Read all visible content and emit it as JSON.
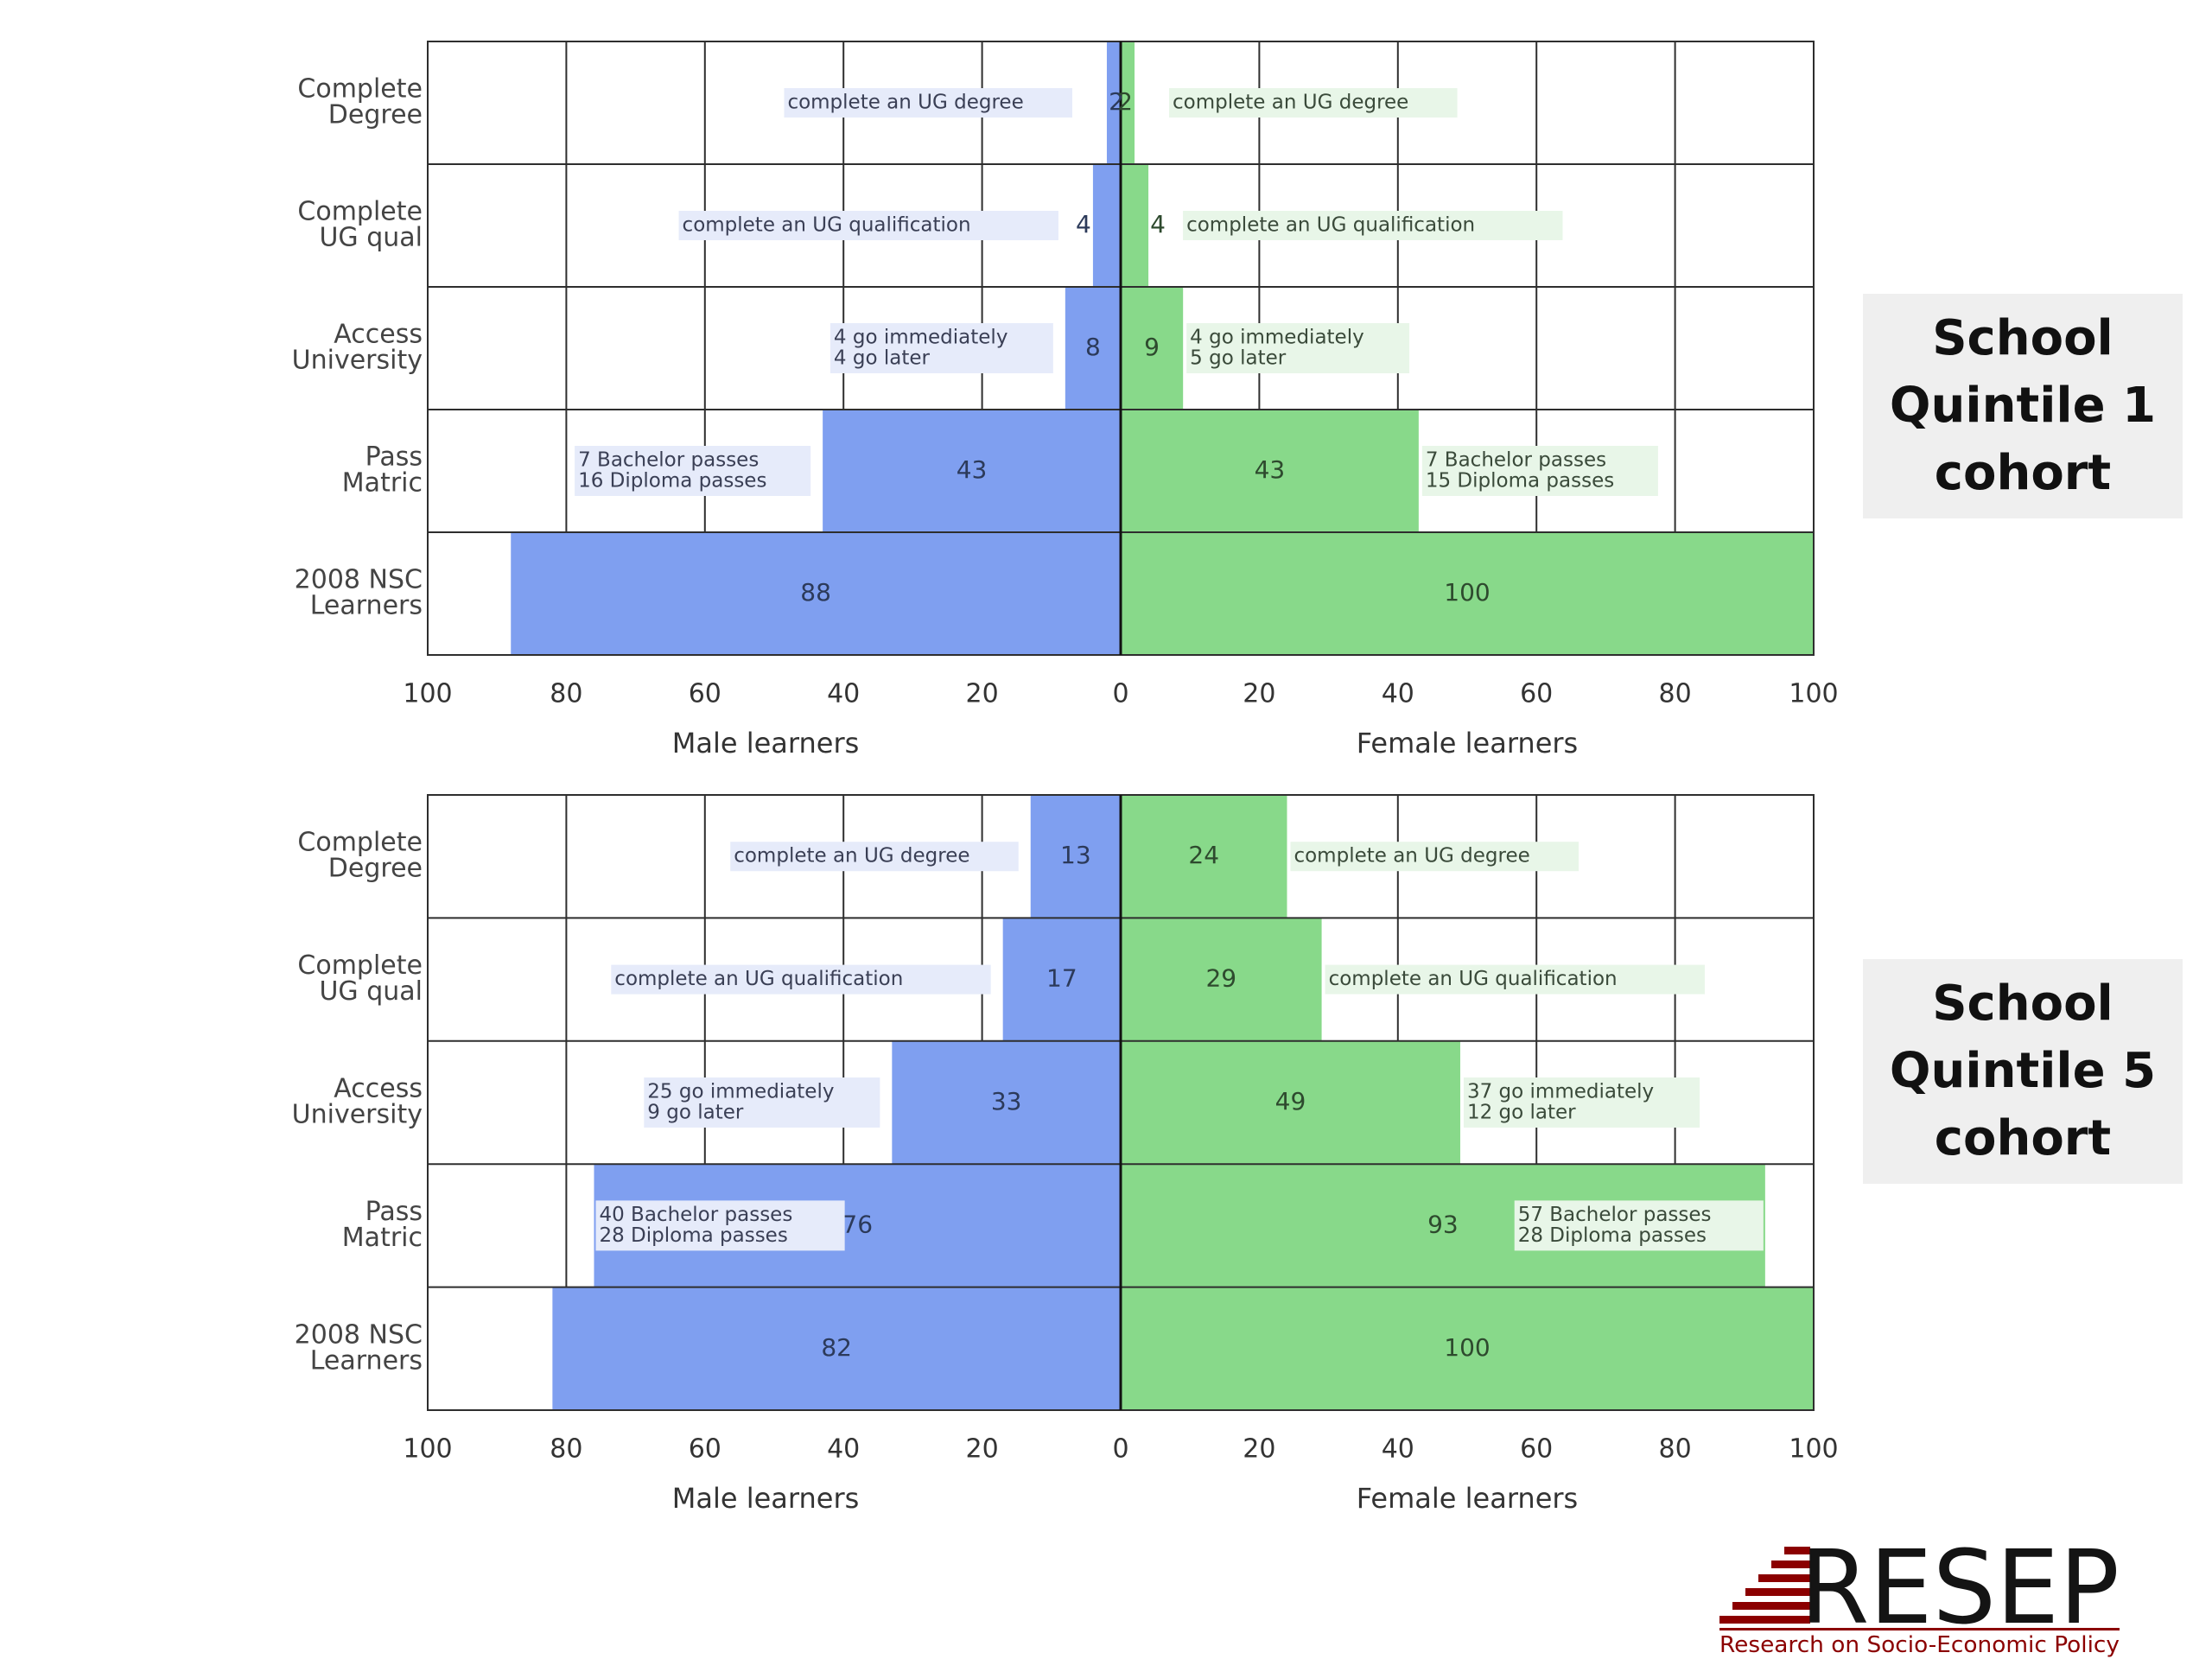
{
  "chart_data": [
    {
      "type": "bar",
      "orientation": "horizontal-diverging",
      "categories": [
        "Complete Degree",
        "Complete UG qual",
        "Access University",
        "Pass Matric",
        "2008 NSC Learners"
      ],
      "category_lines": [
        [
          "Complete",
          "Degree"
        ],
        [
          "Complete",
          "UG qual"
        ],
        [
          "Access",
          "University"
        ],
        [
          "Pass",
          "Matric"
        ],
        [
          "2008 NSC",
          "Learners"
        ]
      ],
      "series": [
        {
          "name": "Male learners",
          "side": "left",
          "color": "#7f9ff0",
          "values": [
            2,
            4,
            8,
            43,
            88
          ],
          "annotations": [
            [
              "complete an UG degree"
            ],
            [
              "complete an UG qualification"
            ],
            [
              "4 go immediately",
              "4 go later"
            ],
            [
              "7 Bachelor passes",
              "16 Diploma passes"
            ],
            []
          ]
        },
        {
          "name": "Female learners",
          "side": "right",
          "color": "#88d98a",
          "values": [
            2,
            4,
            9,
            43,
            100
          ],
          "annotations": [
            [
              "complete an UG degree"
            ],
            [
              "complete an UG qualification"
            ],
            [
              "4 go immediately",
              "5 go later"
            ],
            [
              "7 Bachelor passes",
              "15 Diploma passes"
            ],
            []
          ]
        }
      ],
      "xlim": [
        0,
        100
      ],
      "ticks": [
        "100",
        "80",
        "60",
        "40",
        "20",
        "0",
        "20",
        "40",
        "60",
        "80",
        "100"
      ],
      "xlabel_left": "Male learners",
      "xlabel_right": "Female learners",
      "grid": true,
      "cohort_label": [
        "School",
        "Quintile 1",
        "cohort"
      ]
    },
    {
      "type": "bar",
      "orientation": "horizontal-diverging",
      "categories": [
        "Complete Degree",
        "Complete UG qual",
        "Access University",
        "Pass Matric",
        "2008 NSC Learners"
      ],
      "category_lines": [
        [
          "Complete",
          "Degree"
        ],
        [
          "Complete",
          "UG qual"
        ],
        [
          "Access",
          "University"
        ],
        [
          "Pass",
          "Matric"
        ],
        [
          "2008 NSC",
          "Learners"
        ]
      ],
      "series": [
        {
          "name": "Male learners",
          "side": "left",
          "color": "#7f9ff0",
          "values": [
            13,
            17,
            33,
            76,
            82
          ],
          "annotations": [
            [
              "complete an UG degree"
            ],
            [
              "complete an UG qualification"
            ],
            [
              "25 go immediately",
              "9 go later"
            ],
            [
              "40 Bachelor passes",
              "28 Diploma passes"
            ],
            []
          ]
        },
        {
          "name": "Female learners",
          "side": "right",
          "color": "#88d98a",
          "values": [
            24,
            29,
            49,
            93,
            100
          ],
          "annotations": [
            [
              "complete an UG degree"
            ],
            [
              "complete an UG qualification"
            ],
            [
              "37 go immediately",
              "12 go later"
            ],
            [
              "57 Bachelor passes",
              "28 Diploma passes"
            ],
            []
          ]
        }
      ],
      "xlim": [
        0,
        100
      ],
      "ticks": [
        "100",
        "80",
        "60",
        "40",
        "20",
        "0",
        "20",
        "40",
        "60",
        "80",
        "100"
      ],
      "xlabel_left": "Male learners",
      "xlabel_right": "Female learners",
      "grid": true,
      "cohort_label": [
        "School",
        "Quintile 5",
        "cohort"
      ]
    }
  ],
  "logo": {
    "name": "RESEP",
    "tagline": "Research on Socio-Economic Policy",
    "color": "#8b0000"
  }
}
